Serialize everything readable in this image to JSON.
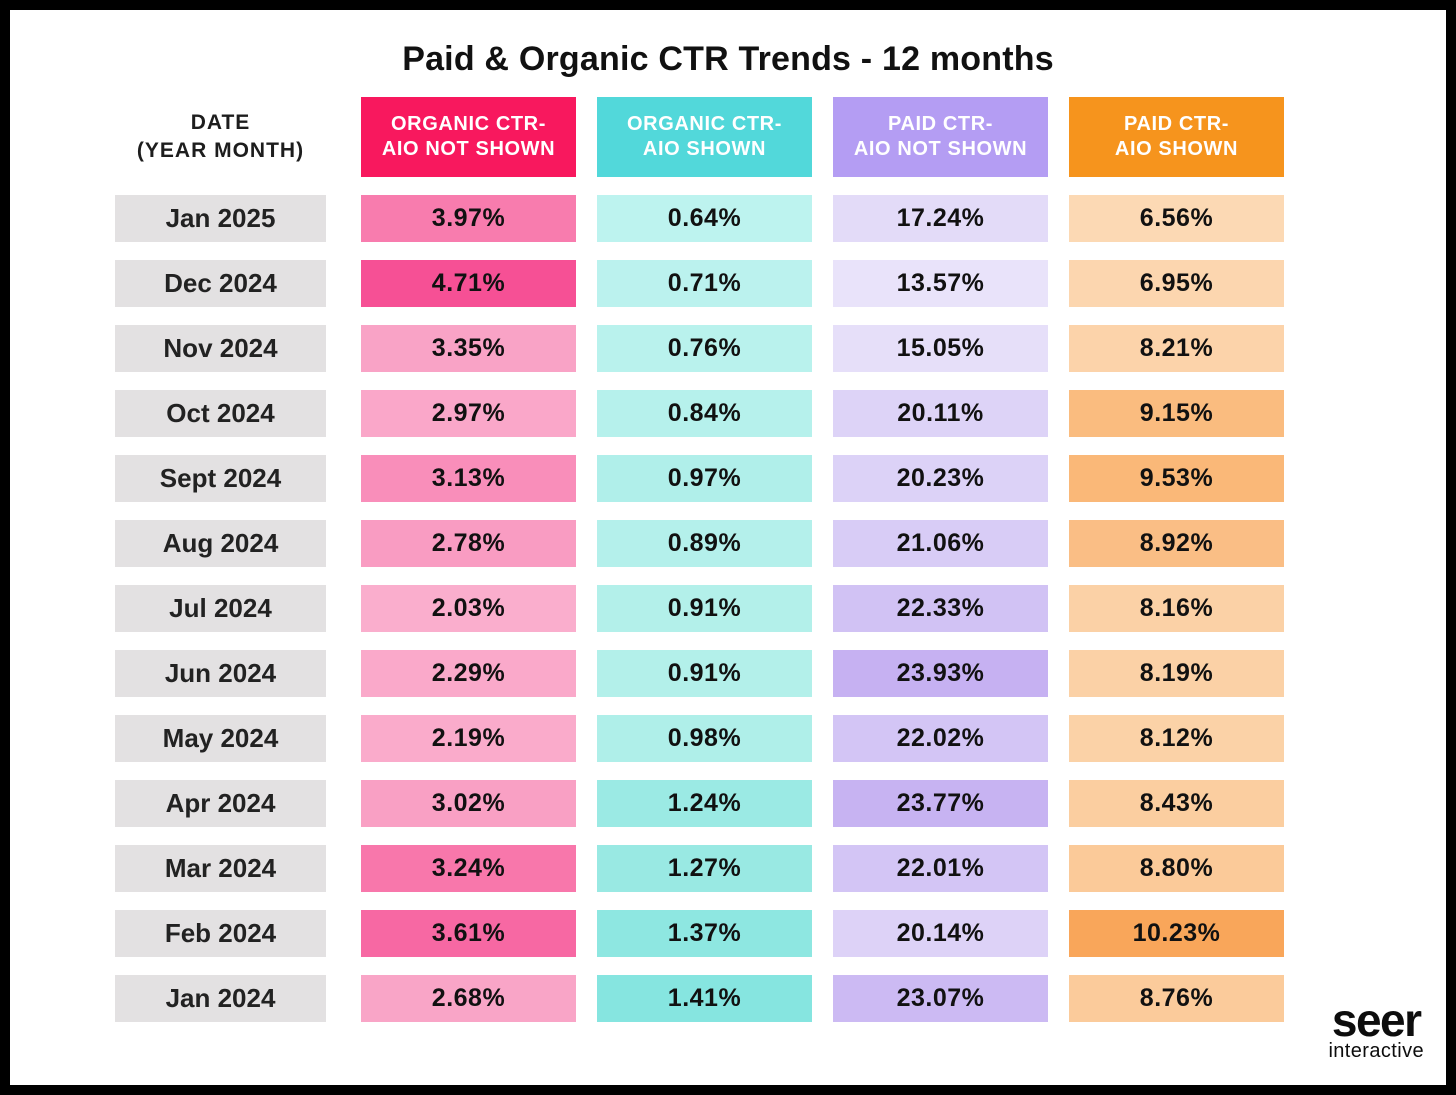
{
  "title": "Paid & Organic CTR Trends - 12 months",
  "date_header": {
    "line1": "DATE",
    "line2": "(YEAR MONTH)"
  },
  "columns": [
    {
      "id": "organic-ctr-aio-not-shown",
      "label_line1": "ORGANIC CTR-",
      "label_line2": "AIO NOT SHOWN",
      "header_bg": "#F8185E"
    },
    {
      "id": "organic-ctr-aio-shown",
      "label_line1": "ORGANIC CTR-",
      "label_line2": "AIO SHOWN",
      "header_bg": "#52D8DA"
    },
    {
      "id": "paid-ctr-aio-not-shown",
      "label_line1": "PAID CTR-",
      "label_line2": "AIO NOT SHOWN",
      "header_bg": "#B49DF3"
    },
    {
      "id": "paid-ctr-aio-shown",
      "label_line1": "PAID CTR-",
      "label_line2": "AIO SHOWN",
      "header_bg": "#F6941D"
    }
  ],
  "date_cell_bg": "#E3E1E2",
  "rows": [
    {
      "date": "Jan 2025",
      "cells": [
        {
          "value": "3.97%",
          "bg": "#F87CAE"
        },
        {
          "value": "0.64%",
          "bg": "#BDF3EF"
        },
        {
          "value": "17.24%",
          "bg": "#E3DBF8"
        },
        {
          "value": "6.56%",
          "bg": "#FCD9B4"
        }
      ]
    },
    {
      "date": "Dec 2024",
      "cells": [
        {
          "value": "4.71%",
          "bg": "#F65095"
        },
        {
          "value": "0.71%",
          "bg": "#BBF2EE"
        },
        {
          "value": "13.57%",
          "bg": "#E9E3FA"
        },
        {
          "value": "6.95%",
          "bg": "#FCD6AF"
        }
      ]
    },
    {
      "date": "Nov 2024",
      "cells": [
        {
          "value": "3.35%",
          "bg": "#F9A3C6"
        },
        {
          "value": "0.76%",
          "bg": "#B9F2ED"
        },
        {
          "value": "15.05%",
          "bg": "#E6DFF9"
        },
        {
          "value": "8.21%",
          "bg": "#FCD3AA"
        }
      ]
    },
    {
      "date": "Oct 2024",
      "cells": [
        {
          "value": "2.97%",
          "bg": "#FAA7C9"
        },
        {
          "value": "0.84%",
          "bg": "#B6F1EC"
        },
        {
          "value": "20.11%",
          "bg": "#DDD3F7"
        },
        {
          "value": "9.15%",
          "bg": "#FABC7F"
        }
      ]
    },
    {
      "date": "Sept 2024",
      "cells": [
        {
          "value": "3.13%",
          "bg": "#F98EBA"
        },
        {
          "value": "0.97%",
          "bg": "#B0EFEA"
        },
        {
          "value": "20.23%",
          "bg": "#DCD2F7"
        },
        {
          "value": "9.53%",
          "bg": "#FAB878"
        }
      ]
    },
    {
      "date": "Aug 2024",
      "cells": [
        {
          "value": "2.78%",
          "bg": "#F99CC2"
        },
        {
          "value": "0.89%",
          "bg": "#B4F0EB"
        },
        {
          "value": "21.06%",
          "bg": "#D8CCF6"
        },
        {
          "value": "8.92%",
          "bg": "#FABE85"
        }
      ]
    },
    {
      "date": "Jul 2024",
      "cells": [
        {
          "value": "2.03%",
          "bg": "#FAAECD"
        },
        {
          "value": "0.91%",
          "bg": "#B3F0EA"
        },
        {
          "value": "22.33%",
          "bg": "#D1C2F4"
        },
        {
          "value": "8.16%",
          "bg": "#FBD1A6"
        }
      ]
    },
    {
      "date": "Jun 2024",
      "cells": [
        {
          "value": "2.29%",
          "bg": "#FAA9CA"
        },
        {
          "value": "0.91%",
          "bg": "#B3F0EA"
        },
        {
          "value": "23.93%",
          "bg": "#C6B1F2"
        },
        {
          "value": "8.19%",
          "bg": "#FBD1A6"
        }
      ]
    },
    {
      "date": "May 2024",
      "cells": [
        {
          "value": "2.19%",
          "bg": "#FAABCB"
        },
        {
          "value": "0.98%",
          "bg": "#AFEFE9"
        },
        {
          "value": "22.02%",
          "bg": "#D3C5F5"
        },
        {
          "value": "8.12%",
          "bg": "#FBD2A7"
        }
      ]
    },
    {
      "date": "Apr 2024",
      "cells": [
        {
          "value": "3.02%",
          "bg": "#F9A0C4"
        },
        {
          "value": "1.24%",
          "bg": "#9BEAE4"
        },
        {
          "value": "23.77%",
          "bg": "#C7B3F2"
        },
        {
          "value": "8.43%",
          "bg": "#FBCEA0"
        }
      ]
    },
    {
      "date": "Mar 2024",
      "cells": [
        {
          "value": "3.24%",
          "bg": "#F877AB"
        },
        {
          "value": "1.27%",
          "bg": "#99E9E3"
        },
        {
          "value": "22.01%",
          "bg": "#D3C5F5"
        },
        {
          "value": "8.80%",
          "bg": "#FBCA99"
        }
      ]
    },
    {
      "date": "Feb 2024",
      "cells": [
        {
          "value": "3.61%",
          "bg": "#F768A3"
        },
        {
          "value": "1.37%",
          "bg": "#8EE7E1"
        },
        {
          "value": "20.14%",
          "bg": "#DDD2F7"
        },
        {
          "value": "10.23%",
          "bg": "#F9A65A"
        }
      ]
    },
    {
      "date": "Jan 2024",
      "cells": [
        {
          "value": "2.68%",
          "bg": "#F9A5C7"
        },
        {
          "value": "1.41%",
          "bg": "#86E5E0"
        },
        {
          "value": "23.07%",
          "bg": "#CCBAF3"
        },
        {
          "value": "8.76%",
          "bg": "#FBCB9B"
        }
      ]
    }
  ],
  "logo": {
    "line1": "seer",
    "line2": "interactive"
  },
  "chart_data": {
    "type": "table",
    "subtype": "heatmap-table",
    "title": "Paid & Organic CTR Trends - 12 months",
    "unit": "%",
    "categories": [
      "Jan 2025",
      "Dec 2024",
      "Nov 2024",
      "Oct 2024",
      "Sept 2024",
      "Aug 2024",
      "Jul 2024",
      "Jun 2024",
      "May 2024",
      "Apr 2024",
      "Mar 2024",
      "Feb 2024",
      "Jan 2024"
    ],
    "series": [
      {
        "name": "Organic CTR - AIO Not Shown",
        "values": [
          3.97,
          4.71,
          3.35,
          2.97,
          3.13,
          2.78,
          2.03,
          2.29,
          2.19,
          3.02,
          3.24,
          3.61,
          2.68
        ]
      },
      {
        "name": "Organic CTR - AIO Shown",
        "values": [
          0.64,
          0.71,
          0.76,
          0.84,
          0.97,
          0.89,
          0.91,
          0.91,
          0.98,
          1.24,
          1.27,
          1.37,
          1.41
        ]
      },
      {
        "name": "Paid CTR - AIO Not Shown",
        "values": [
          17.24,
          13.57,
          15.05,
          20.11,
          20.23,
          21.06,
          22.33,
          23.93,
          22.02,
          23.77,
          22.01,
          20.14,
          23.07
        ]
      },
      {
        "name": "Paid CTR - AIO Shown",
        "values": [
          6.56,
          6.95,
          8.21,
          9.15,
          9.53,
          8.92,
          8.16,
          8.19,
          8.12,
          8.43,
          8.8,
          10.23,
          8.76
        ]
      }
    ],
    "legend_position": "header-row",
    "grid": false
  }
}
